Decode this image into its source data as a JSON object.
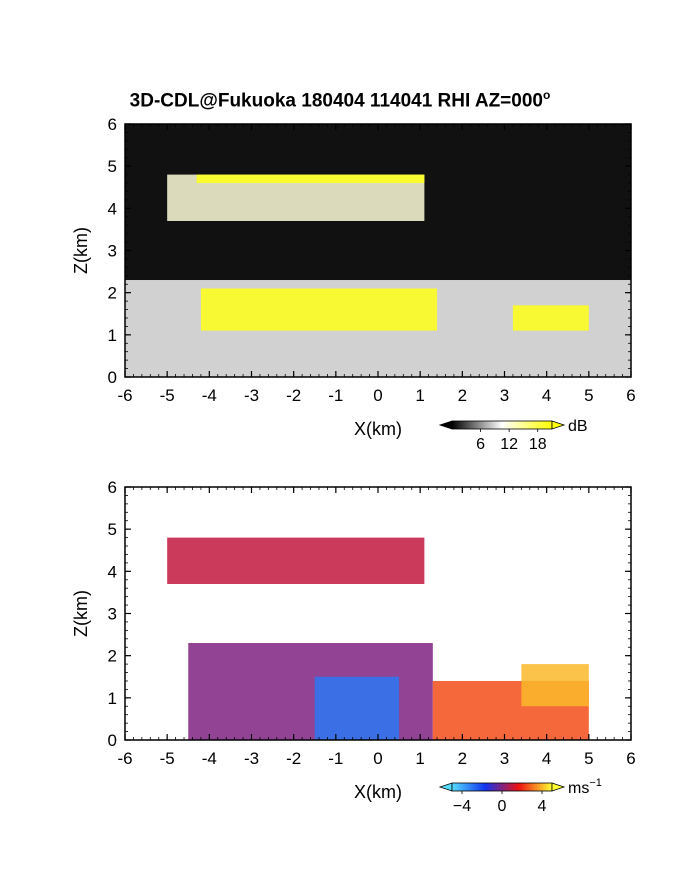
{
  "title": "3D-CDL@Fukuoka 180404 114041 RHI AZ=000",
  "title_degree": "o",
  "chart_data": [
    {
      "type": "heatmap",
      "name": "reflectivity",
      "xlabel": "X(km)",
      "ylabel": "Z(km)",
      "xlim": [
        -6,
        6
      ],
      "ylim": [
        0,
        6
      ],
      "xticks": [
        "-6",
        "-5",
        "-4",
        "-3",
        "-2",
        "-1",
        "0",
        "1",
        "2",
        "3",
        "4",
        "5",
        "6"
      ],
      "yticks": [
        "0",
        "1",
        "2",
        "3",
        "4",
        "5",
        "6"
      ],
      "colorbar": {
        "unit": "dB",
        "ticks": [
          "6",
          "12",
          "18"
        ],
        "range": [
          0,
          21
        ],
        "colors": [
          "#000000",
          "#ffffff",
          "#ffff00"
        ]
      },
      "background": "#111111",
      "echo_layers": [
        {
          "x": [
            -5.0,
            1.1
          ],
          "z": [
            3.7,
            4.8
          ],
          "value": 12
        },
        {
          "x": [
            -4.3,
            1.1
          ],
          "z": [
            4.6,
            4.8
          ],
          "value": 20
        },
        {
          "x": [
            -6.0,
            6.0
          ],
          "z": [
            0.0,
            2.3
          ],
          "value": 10
        },
        {
          "x": [
            -4.2,
            1.4
          ],
          "z": [
            1.1,
            2.1
          ],
          "value": 20
        },
        {
          "x": [
            3.2,
            5.0
          ],
          "z": [
            1.1,
            1.7
          ],
          "value": 20
        }
      ]
    },
    {
      "type": "heatmap",
      "name": "doppler_velocity",
      "xlabel": "X(km)",
      "ylabel": "Z(km)",
      "xlim": [
        -6,
        6
      ],
      "ylim": [
        0,
        6
      ],
      "xticks": [
        "-6",
        "-5",
        "-4",
        "-3",
        "-2",
        "-1",
        "0",
        "1",
        "2",
        "3",
        "4",
        "5",
        "6"
      ],
      "yticks": [
        "0",
        "1",
        "2",
        "3",
        "4",
        "5",
        "6"
      ],
      "colorbar": {
        "unit": "ms",
        "unit_exponent": "-1",
        "ticks": [
          "-4",
          "0",
          "4"
        ],
        "range": [
          -5,
          5
        ],
        "colors": [
          "#55ddff",
          "#1133ee",
          "#ee1111",
          "#ffff33"
        ]
      },
      "echo_layers": [
        {
          "x": [
            -5.0,
            1.1
          ],
          "z": [
            3.7,
            4.8
          ],
          "value": 1.0
        },
        {
          "x": [
            -4.5,
            1.3
          ],
          "z": [
            0.0,
            2.3
          ],
          "value": 0.0
        },
        {
          "x": [
            -1.5,
            0.5
          ],
          "z": [
            0.0,
            1.5
          ],
          "value": -3.0
        },
        {
          "x": [
            1.3,
            5.0
          ],
          "z": [
            0.0,
            1.4
          ],
          "value": 2.5
        },
        {
          "x": [
            3.4,
            5.0
          ],
          "z": [
            0.8,
            1.8
          ],
          "value": 4.0
        }
      ]
    }
  ]
}
